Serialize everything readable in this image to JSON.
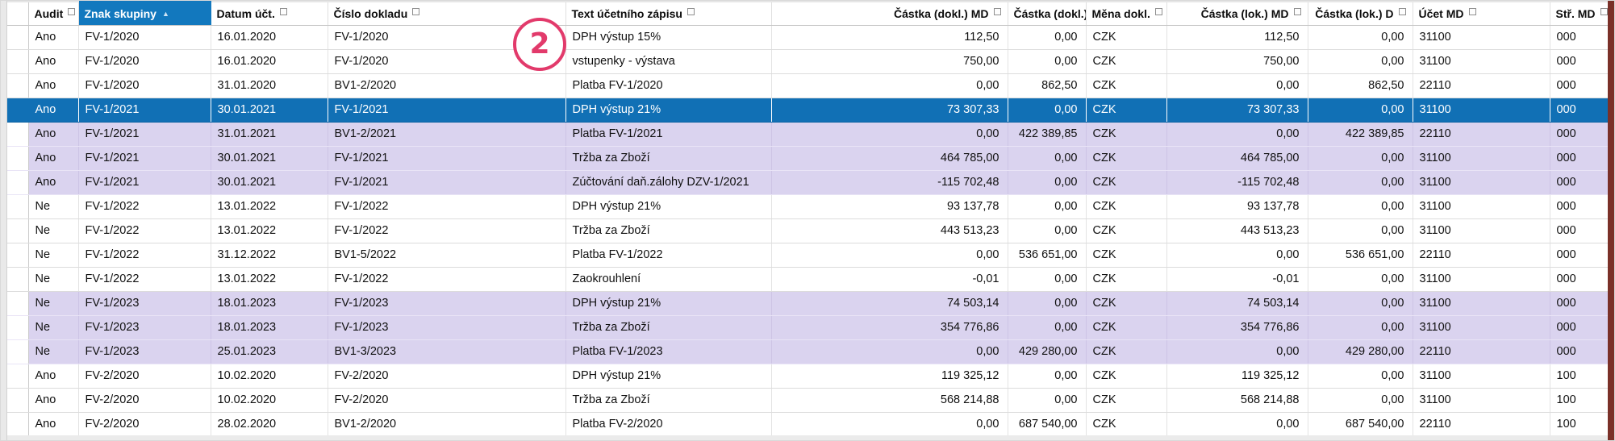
{
  "annotation": {
    "number": "2",
    "color": "#e23a6b"
  },
  "colors": {
    "sorted_header_bg": "#1278be",
    "selected_row_bg": "#1170b5",
    "group_shade_bg": "#dad3ef",
    "window_edge": "#7a3028"
  },
  "table": {
    "columns": [
      {
        "id": "audit",
        "label": "Audit",
        "align": "left",
        "sorted": false
      },
      {
        "id": "znak",
        "label": "Znak skupiny",
        "align": "left",
        "sorted": true,
        "sort_indicator": "asc"
      },
      {
        "id": "datum",
        "label": "Datum účt.",
        "align": "left",
        "sorted": false
      },
      {
        "id": "cislo",
        "label": "Číslo dokladu",
        "align": "left",
        "sorted": false
      },
      {
        "id": "text",
        "label": "Text účetního zápisu",
        "align": "left",
        "sorted": false
      },
      {
        "id": "dokl-md",
        "label": "Částka (dokl.) MD",
        "align": "right",
        "sorted": false
      },
      {
        "id": "dokl-d",
        "label": "Částka (dokl.) D",
        "align": "right",
        "sorted": false
      },
      {
        "id": "mena",
        "label": "Měna dokl.",
        "align": "left",
        "sorted": false
      },
      {
        "id": "lok-md",
        "label": "Částka (lok.) MD",
        "align": "right",
        "sorted": false
      },
      {
        "id": "lok-d",
        "label": "Částka (lok.) D",
        "align": "right",
        "sorted": false
      },
      {
        "id": "ucet-md",
        "label": "Účet MD",
        "align": "left",
        "sorted": false
      },
      {
        "id": "str-md",
        "label": "Stř. MD",
        "align": "left",
        "sorted": false
      }
    ],
    "rows": [
      {
        "selected": false,
        "shade": "white",
        "cells": [
          "Ano",
          "FV-1/2020",
          "16.01.2020",
          "FV-1/2020",
          "DPH výstup 15%",
          "112,50",
          "0,00",
          "CZK",
          "112,50",
          "0,00",
          "31100",
          "000"
        ]
      },
      {
        "selected": false,
        "shade": "white",
        "cells": [
          "Ano",
          "FV-1/2020",
          "16.01.2020",
          "FV-1/2020",
          "vstupenky - výstava",
          "750,00",
          "0,00",
          "CZK",
          "750,00",
          "0,00",
          "31100",
          "000"
        ]
      },
      {
        "selected": false,
        "shade": "white",
        "cells": [
          "Ano",
          "FV-1/2020",
          "31.01.2020",
          "BV1-2/2020",
          "Platba FV-1/2020",
          "0,00",
          "862,50",
          "CZK",
          "0,00",
          "862,50",
          "22110",
          "000"
        ]
      },
      {
        "selected": true,
        "shade": "lavender",
        "cells": [
          "Ano",
          "FV-1/2021",
          "30.01.2021",
          "FV-1/2021",
          "DPH výstup 21%",
          "73 307,33",
          "0,00",
          "CZK",
          "73 307,33",
          "0,00",
          "31100",
          "000"
        ]
      },
      {
        "selected": false,
        "shade": "lavender",
        "cells": [
          "Ano",
          "FV-1/2021",
          "31.01.2021",
          "BV1-2/2021",
          "Platba FV-1/2021",
          "0,00",
          "422 389,85",
          "CZK",
          "0,00",
          "422 389,85",
          "22110",
          "000"
        ]
      },
      {
        "selected": false,
        "shade": "lavender",
        "cells": [
          "Ano",
          "FV-1/2021",
          "30.01.2021",
          "FV-1/2021",
          "Tržba za Zboží",
          "464 785,00",
          "0,00",
          "CZK",
          "464 785,00",
          "0,00",
          "31100",
          "000"
        ]
      },
      {
        "selected": false,
        "shade": "lavender",
        "cells": [
          "Ano",
          "FV-1/2021",
          "30.01.2021",
          "FV-1/2021",
          "Zúčtování daň.zálohy DZV-1/2021",
          "-115 702,48",
          "0,00",
          "CZK",
          "-115 702,48",
          "0,00",
          "31100",
          "000"
        ]
      },
      {
        "selected": false,
        "shade": "white",
        "cells": [
          "Ne",
          "FV-1/2022",
          "13.01.2022",
          "FV-1/2022",
          "DPH výstup 21%",
          "93 137,78",
          "0,00",
          "CZK",
          "93 137,78",
          "0,00",
          "31100",
          "000"
        ]
      },
      {
        "selected": false,
        "shade": "white",
        "cells": [
          "Ne",
          "FV-1/2022",
          "13.01.2022",
          "FV-1/2022",
          "Tržba za Zboží",
          "443 513,23",
          "0,00",
          "CZK",
          "443 513,23",
          "0,00",
          "31100",
          "000"
        ]
      },
      {
        "selected": false,
        "shade": "white",
        "cells": [
          "Ne",
          "FV-1/2022",
          "31.12.2022",
          "BV1-5/2022",
          "Platba FV-1/2022",
          "0,00",
          "536 651,00",
          "CZK",
          "0,00",
          "536 651,00",
          "22110",
          "000"
        ]
      },
      {
        "selected": false,
        "shade": "white",
        "cells": [
          "Ne",
          "FV-1/2022",
          "13.01.2022",
          "FV-1/2022",
          "Zaokrouhlení",
          "-0,01",
          "0,00",
          "CZK",
          "-0,01",
          "0,00",
          "31100",
          "000"
        ]
      },
      {
        "selected": false,
        "shade": "lavender",
        "cells": [
          "Ne",
          "FV-1/2023",
          "18.01.2023",
          "FV-1/2023",
          "DPH výstup 21%",
          "74 503,14",
          "0,00",
          "CZK",
          "74 503,14",
          "0,00",
          "31100",
          "000"
        ]
      },
      {
        "selected": false,
        "shade": "lavender",
        "cells": [
          "Ne",
          "FV-1/2023",
          "18.01.2023",
          "FV-1/2023",
          "Tržba za Zboží",
          "354 776,86",
          "0,00",
          "CZK",
          "354 776,86",
          "0,00",
          "31100",
          "000"
        ]
      },
      {
        "selected": false,
        "shade": "lavender",
        "cells": [
          "Ne",
          "FV-1/2023",
          "25.01.2023",
          "BV1-3/2023",
          "Platba FV-1/2023",
          "0,00",
          "429 280,00",
          "CZK",
          "0,00",
          "429 280,00",
          "22110",
          "000"
        ]
      },
      {
        "selected": false,
        "shade": "white",
        "cells": [
          "Ano",
          "FV-2/2020",
          "10.02.2020",
          "FV-2/2020",
          "DPH výstup 21%",
          "119 325,12",
          "0,00",
          "CZK",
          "119 325,12",
          "0,00",
          "31100",
          "100"
        ]
      },
      {
        "selected": false,
        "shade": "white",
        "cells": [
          "Ano",
          "FV-2/2020",
          "10.02.2020",
          "FV-2/2020",
          "Tržba za Zboží",
          "568 214,88",
          "0,00",
          "CZK",
          "568 214,88",
          "0,00",
          "31100",
          "100"
        ]
      },
      {
        "selected": false,
        "shade": "white",
        "cells": [
          "Ano",
          "FV-2/2020",
          "28.02.2020",
          "BV1-2/2020",
          "Platba FV-2/2020",
          "0,00",
          "687 540,00",
          "CZK",
          "0,00",
          "687 540,00",
          "22110",
          "100"
        ]
      }
    ]
  }
}
